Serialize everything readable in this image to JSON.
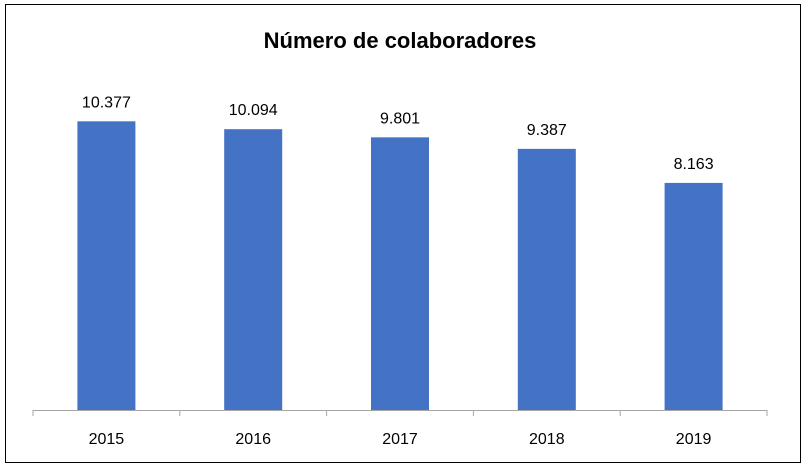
{
  "chart_data": {
    "type": "bar",
    "title": "Número de colaboradores",
    "xlabel": "",
    "ylabel": "",
    "categories": [
      "2015",
      "2016",
      "2017",
      "2018",
      "2019"
    ],
    "values": [
      10377,
      10094,
      9801,
      9387,
      8163
    ],
    "data_labels": [
      "10.377",
      "10.094",
      "9.801",
      "9.387",
      "8.163"
    ],
    "ylim": [
      0,
      12000
    ],
    "grid": false,
    "legend": "none",
    "bar_color": "#4472C4",
    "axis_color": "#A6A6A6",
    "border_color": "#000000"
  }
}
